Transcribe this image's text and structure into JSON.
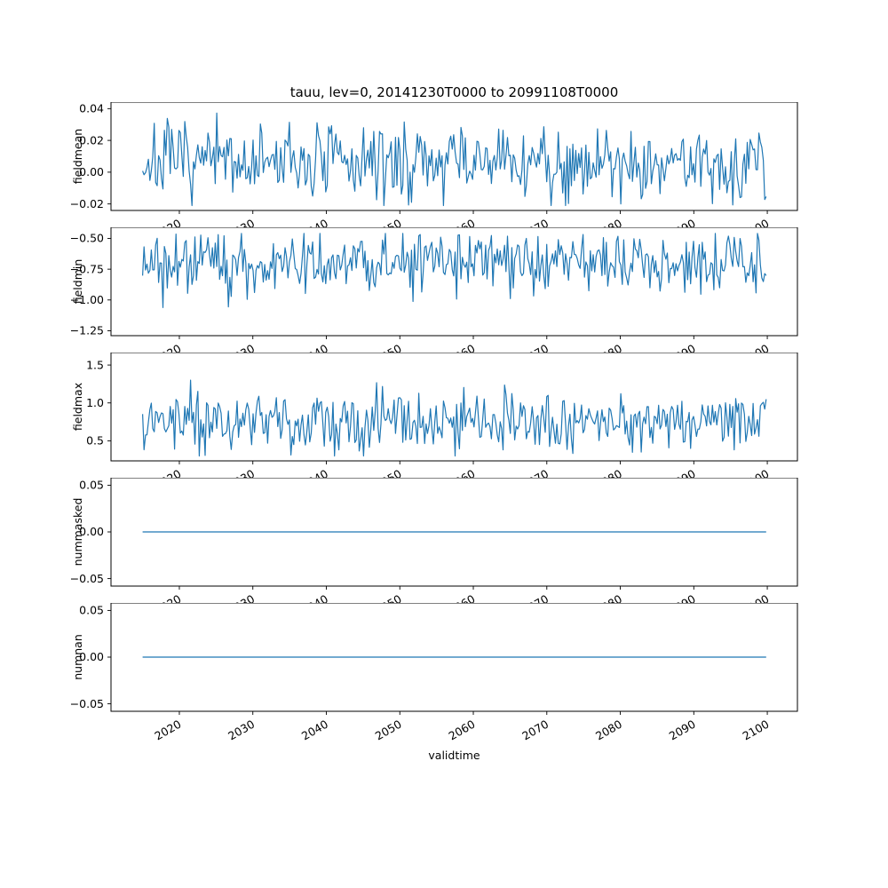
{
  "chart_data": {
    "type": "line",
    "title": "tauu, lev=0, 20141230T0000 to 20991108T0000",
    "xlabel": "validtime",
    "line_color": "#1f77b4",
    "axis_color": "#000000",
    "background": "#ffffff",
    "x": {
      "start": 2015.0,
      "end": 2099.85,
      "n_points": 430,
      "lim": [
        2010.7,
        2104.1
      ],
      "ticks": [
        2020,
        2030,
        2040,
        2050,
        2060,
        2070,
        2080,
        2090,
        2100
      ],
      "tick_labels": [
        "2020",
        "2030",
        "2040",
        "2050",
        "2060",
        "2070",
        "2080",
        "2090",
        "2100"
      ]
    },
    "subplots": [
      {
        "name": "fieldmean",
        "ylabel": "fieldmean",
        "ylim": [
          -0.0241,
          0.0441
        ],
        "yticks": [
          -0.02,
          0.0,
          0.02,
          0.04
        ],
        "ytick_labels": [
          "−0.02",
          "0.00",
          "0.02",
          "0.04"
        ],
        "series": {
          "kind": "noise",
          "mean": 0.006,
          "std": 0.012,
          "clamp_min": -0.021,
          "clamp_max": 0.041,
          "seed": 7
        }
      },
      {
        "name": "fieldmin",
        "ylabel": "fieldmin",
        "ylim": [
          -1.29,
          -0.41
        ],
        "yticks": [
          -1.25,
          -1.0,
          -0.75,
          -0.5
        ],
        "ytick_labels": [
          "−1.25",
          "−1.00",
          "−0.75",
          "−0.50"
        ],
        "series": {
          "kind": "noise",
          "mean": -0.7,
          "std": 0.13,
          "clamp_min": -1.25,
          "clamp_max": -0.46,
          "seed": 21
        }
      },
      {
        "name": "fieldmax",
        "ylabel": "fieldmax",
        "ylim": [
          0.235,
          1.665
        ],
        "yticks": [
          0.5,
          1.0,
          1.5
        ],
        "ytick_labels": [
          "0.5",
          "1.0",
          "1.5"
        ],
        "series": {
          "kind": "noise",
          "mean": 0.75,
          "std": 0.2,
          "clamp_min": 0.3,
          "clamp_max": 1.6,
          "seed": 99
        }
      },
      {
        "name": "nummasked",
        "ylabel": "nummasked",
        "ylim": [
          -0.058,
          0.058
        ],
        "yticks": [
          -0.05,
          0.0,
          0.05
        ],
        "ytick_labels": [
          "−0.05",
          "0.00",
          "0.05"
        ],
        "series": {
          "kind": "constant",
          "value": 0.0
        }
      },
      {
        "name": "numnan",
        "ylabel": "numnan",
        "ylim": [
          -0.058,
          0.058
        ],
        "yticks": [
          -0.05,
          0.0,
          0.05
        ],
        "ytick_labels": [
          "−0.05",
          "0.00",
          "0.05"
        ],
        "series": {
          "kind": "constant",
          "value": 0.0
        }
      }
    ]
  }
}
